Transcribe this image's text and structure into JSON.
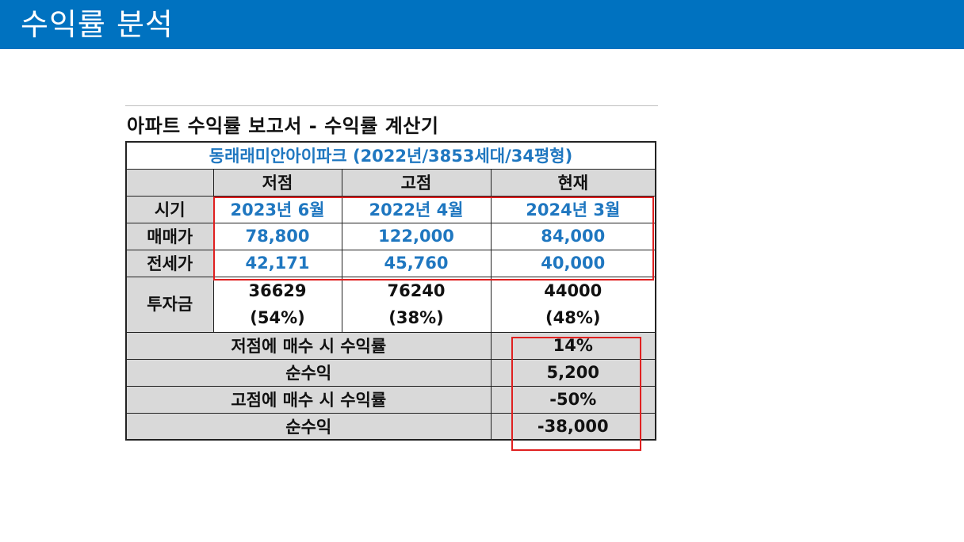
{
  "header": {
    "title": "수익률 분석"
  },
  "report": {
    "title": "아파트 수익률 보고서 - 수익률 계산기",
    "subtitle": "동래래미안아이파크 (2022년/3853세대/34평형)",
    "columns": [
      "저점",
      "고점",
      "현재"
    ],
    "rows": {
      "period": {
        "label": "시기",
        "values": [
          "2023년 6월",
          "2022년 4월",
          "2024년 3월"
        ]
      },
      "sale_price": {
        "label": "매매가",
        "values": [
          "78,800",
          "122,000",
          "84,000"
        ]
      },
      "jeonse_price": {
        "label": "전세가",
        "values": [
          "42,171",
          "45,760",
          "40,000"
        ]
      },
      "investment": {
        "label": "투자금",
        "values": [
          "36629",
          "76240",
          "44000"
        ],
        "ratios": [
          "(54%)",
          "(38%)",
          "(48%)"
        ]
      }
    },
    "results": [
      {
        "label": "저점에 매수 시 수익률",
        "value": "14%"
      },
      {
        "label": "순수익",
        "value": "5,200"
      },
      {
        "label": "고점에 매수 시 수익률",
        "value": "-50%"
      },
      {
        "label": "순수익",
        "value": "-38,000"
      }
    ]
  },
  "colors": {
    "header_bg": "#0072c0",
    "accent_blue": "#1f77c0",
    "highlight_red": "#e02020",
    "cell_gray": "#d9d9d9"
  }
}
